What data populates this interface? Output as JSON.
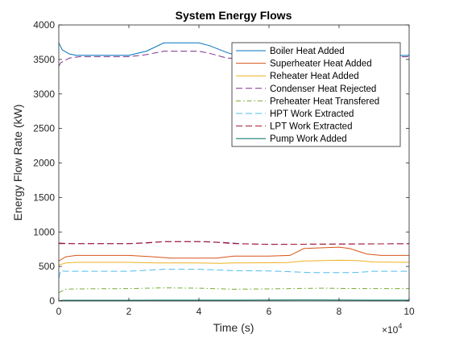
{
  "chart_data": {
    "type": "line",
    "title": "System Energy Flows",
    "xlabel": "Time (s)",
    "ylabel": "Energy Flow Rate (kW)",
    "xlim": [
      0,
      100000
    ],
    "ylim": [
      0,
      4000
    ],
    "x_ticks": [
      0,
      20000,
      40000,
      60000,
      80000,
      100000
    ],
    "x_tick_labels": [
      "0",
      "2",
      "4",
      "6",
      "8",
      "10"
    ],
    "x_exponent_label": "×10",
    "x_exponent_power": "4",
    "y_ticks": [
      0,
      500,
      1000,
      1500,
      2000,
      2500,
      3000,
      3500,
      4000
    ],
    "y_tick_labels": [
      "0",
      "500",
      "1000",
      "1500",
      "2000",
      "2500",
      "3000",
      "3500",
      "4000"
    ],
    "grid": false,
    "legend_position": "top-right",
    "series": [
      {
        "name": "Boiler Heat Added",
        "color": "#0072bd",
        "dash": "solid",
        "x": [
          0,
          1000,
          3000,
          5000,
          10000,
          20000,
          25000,
          30000,
          40000,
          43000,
          48000,
          52000,
          60000,
          70000,
          75000,
          85000,
          90000,
          100000
        ],
        "y": [
          3740,
          3640,
          3580,
          3560,
          3560,
          3560,
          3620,
          3740,
          3740,
          3700,
          3600,
          3540,
          3520,
          3520,
          3530,
          3530,
          3550,
          3560
        ]
      },
      {
        "name": "Superheater Heat Added",
        "color": "#d95319",
        "dash": "solid",
        "x": [
          0,
          2000,
          5000,
          10000,
          20000,
          27000,
          32000,
          40000,
          45000,
          50000,
          60000,
          66000,
          70000,
          80000,
          83000,
          88000,
          92000,
          100000
        ],
        "y": [
          580,
          640,
          660,
          660,
          660,
          640,
          620,
          620,
          620,
          650,
          650,
          660,
          760,
          780,
          760,
          680,
          660,
          660
        ]
      },
      {
        "name": "Reheater Heat Added",
        "color": "#edb120",
        "dash": "solid",
        "x": [
          0,
          2000,
          5000,
          20000,
          28000,
          40000,
          46000,
          50000,
          65000,
          70000,
          80000,
          85000,
          90000,
          100000
        ],
        "y": [
          520,
          550,
          560,
          560,
          550,
          550,
          545,
          550,
          555,
          580,
          590,
          585,
          565,
          560
        ]
      },
      {
        "name": "Condenser Heat Rejected",
        "color": "#7e2f8e",
        "dash": "dashed",
        "x": [
          0,
          2000,
          5000,
          20000,
          25000,
          30000,
          42000,
          48000,
          52000,
          60000,
          100000
        ],
        "y": [
          840,
          835,
          830,
          830,
          840,
          860,
          860,
          845,
          830,
          820,
          830
        ]
      },
      {
        "name": "Preheater Heat Transfered",
        "color": "#77ac30",
        "dash": "dashdot",
        "x": [
          0,
          2000,
          5000,
          20000,
          30000,
          40000,
          50000,
          60000,
          75000,
          85000,
          100000
        ],
        "y": [
          120,
          170,
          175,
          180,
          190,
          185,
          170,
          175,
          185,
          180,
          180
        ]
      },
      {
        "name": "HPT Work Extracted",
        "color": "#4dbeee",
        "dash": "dashed",
        "x": [
          0,
          500,
          2000,
          5000,
          20000,
          30000,
          40000,
          50000,
          60000,
          68000,
          72000,
          78000,
          84000,
          90000,
          100000
        ],
        "y": [
          330,
          440,
          430,
          430,
          430,
          460,
          460,
          440,
          435,
          420,
          410,
          410,
          410,
          430,
          430
        ]
      },
      {
        "name": "LPT Work Extracted",
        "color": "#a2142f",
        "dash": "dashed",
        "x": [
          0,
          2000,
          5000,
          20000,
          30000,
          40000,
          45000,
          50000,
          60000,
          100000
        ],
        "y": [
          830,
          830,
          830,
          830,
          860,
          860,
          850,
          830,
          820,
          830
        ]
      },
      {
        "name": "Pump Work Added",
        "color": "#007060",
        "dash": "solid",
        "x": [
          0,
          1000,
          5000,
          20000,
          30000,
          50000,
          70000,
          90000,
          100000
        ],
        "y": [
          0,
          10,
          10,
          10,
          12,
          12,
          14,
          12,
          12
        ]
      },
      {
        "color": "#7e2f8e",
        "dash": "dashed",
        "x": [
          0,
          500,
          3000,
          6000,
          10000,
          20000,
          25000,
          30000,
          40000,
          43000,
          48000,
          52000,
          60000,
          70000,
          75000,
          85000,
          90000,
          100000
        ],
        "y": [
          3400,
          3450,
          3520,
          3540,
          3540,
          3540,
          3570,
          3620,
          3620,
          3590,
          3520,
          3510,
          3500,
          3500,
          3500,
          3510,
          3530,
          3540
        ]
      }
    ]
  }
}
